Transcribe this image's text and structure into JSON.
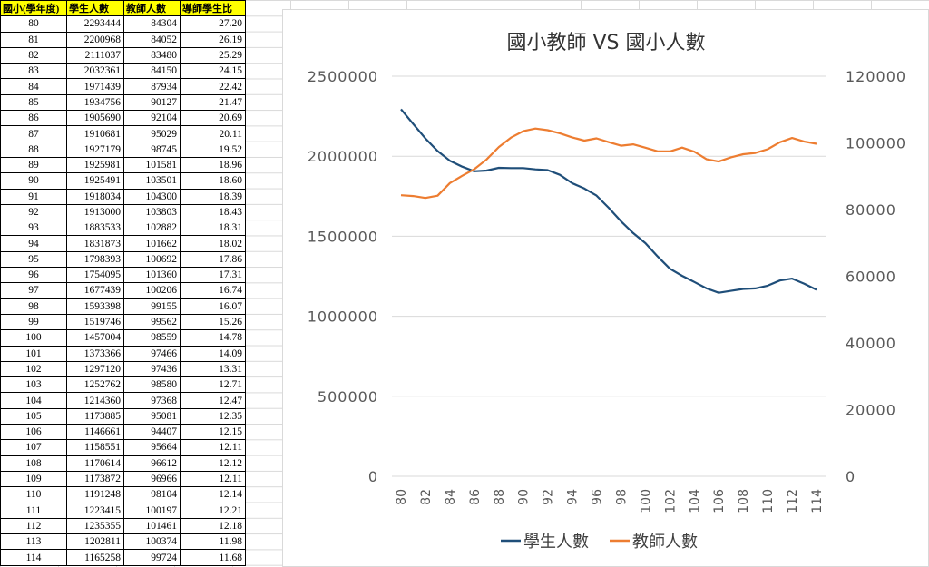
{
  "table": {
    "headers": [
      "國小(學年度)",
      "學生人數",
      "教師人數",
      "導師學生比"
    ],
    "rows": [
      [
        "80",
        "2293444",
        "84304",
        "27.20"
      ],
      [
        "81",
        "2200968",
        "84052",
        "26.19"
      ],
      [
        "82",
        "2111037",
        "83480",
        "25.29"
      ],
      [
        "83",
        "2032361",
        "84150",
        "24.15"
      ],
      [
        "84",
        "1971439",
        "87934",
        "22.42"
      ],
      [
        "85",
        "1934756",
        "90127",
        "21.47"
      ],
      [
        "86",
        "1905690",
        "92104",
        "20.69"
      ],
      [
        "87",
        "1910681",
        "95029",
        "20.11"
      ],
      [
        "88",
        "1927179",
        "98745",
        "19.52"
      ],
      [
        "89",
        "1925981",
        "101581",
        "18.96"
      ],
      [
        "90",
        "1925491",
        "103501",
        "18.60"
      ],
      [
        "91",
        "1918034",
        "104300",
        "18.39"
      ],
      [
        "92",
        "1913000",
        "103803",
        "18.43"
      ],
      [
        "93",
        "1883533",
        "102882",
        "18.31"
      ],
      [
        "94",
        "1831873",
        "101662",
        "18.02"
      ],
      [
        "95",
        "1798393",
        "100692",
        "17.86"
      ],
      [
        "96",
        "1754095",
        "101360",
        "17.31"
      ],
      [
        "97",
        "1677439",
        "100206",
        "16.74"
      ],
      [
        "98",
        "1593398",
        "99155",
        "16.07"
      ],
      [
        "99",
        "1519746",
        "99562",
        "15.26"
      ],
      [
        "100",
        "1457004",
        "98559",
        "14.78"
      ],
      [
        "101",
        "1373366",
        "97466",
        "14.09"
      ],
      [
        "102",
        "1297120",
        "97436",
        "13.31"
      ],
      [
        "103",
        "1252762",
        "98580",
        "12.71"
      ],
      [
        "104",
        "1214360",
        "97368",
        "12.47"
      ],
      [
        "105",
        "1173885",
        "95081",
        "12.35"
      ],
      [
        "106",
        "1146661",
        "94407",
        "12.15"
      ],
      [
        "107",
        "1158551",
        "95664",
        "12.11"
      ],
      [
        "108",
        "1170614",
        "96612",
        "12.12"
      ],
      [
        "109",
        "1173872",
        "96966",
        "12.11"
      ],
      [
        "110",
        "1191248",
        "98104",
        "12.14"
      ],
      [
        "111",
        "1223415",
        "100197",
        "12.21"
      ],
      [
        "112",
        "1235355",
        "101461",
        "12.18"
      ],
      [
        "113",
        "1202811",
        "100374",
        "11.98"
      ],
      [
        "114",
        "1165258",
        "99724",
        "11.68"
      ]
    ]
  },
  "chart_data": {
    "type": "line",
    "title": "國小教師 VS 國小人數",
    "x": [
      80,
      81,
      82,
      83,
      84,
      85,
      86,
      87,
      88,
      89,
      90,
      91,
      92,
      93,
      94,
      95,
      96,
      97,
      98,
      99,
      100,
      101,
      102,
      103,
      104,
      105,
      106,
      107,
      108,
      109,
      110,
      111,
      112,
      113,
      114
    ],
    "x_tick_labels": [
      "80",
      "82",
      "84",
      "86",
      "88",
      "90",
      "92",
      "94",
      "96",
      "98",
      "100",
      "102",
      "104",
      "106",
      "108",
      "110",
      "112",
      "114"
    ],
    "y_left": {
      "ylim": [
        0,
        2500000
      ],
      "ticks": [
        "0",
        "500000",
        "1000000",
        "1500000",
        "2000000",
        "2500000"
      ]
    },
    "y_right": {
      "ylim": [
        0,
        120000
      ],
      "ticks": [
        "0",
        "20000",
        "40000",
        "60000",
        "80000",
        "100000",
        "120000"
      ]
    },
    "series": [
      {
        "name": "學生人數",
        "axis": "left",
        "color": "#1f4e79",
        "values": [
          2293444,
          2200968,
          2111037,
          2032361,
          1971439,
          1934756,
          1905690,
          1910681,
          1927179,
          1925981,
          1925491,
          1918034,
          1913000,
          1883533,
          1831873,
          1798393,
          1754095,
          1677439,
          1593398,
          1519746,
          1457004,
          1373366,
          1297120,
          1252762,
          1214360,
          1173885,
          1146661,
          1158551,
          1170614,
          1173872,
          1191248,
          1223415,
          1235355,
          1202811,
          1165258
        ]
      },
      {
        "name": "教師人數",
        "axis": "right",
        "color": "#ed7d31",
        "values": [
          84304,
          84052,
          83480,
          84150,
          87934,
          90127,
          92104,
          95029,
          98745,
          101581,
          103501,
          104300,
          103803,
          102882,
          101662,
          100692,
          101360,
          100206,
          99155,
          99562,
          98559,
          97466,
          97436,
          98580,
          97368,
          95081,
          94407,
          95664,
          96612,
          96966,
          98104,
          100197,
          101461,
          100374,
          99724
        ]
      }
    ],
    "legend_position": "bottom",
    "grid": true
  }
}
